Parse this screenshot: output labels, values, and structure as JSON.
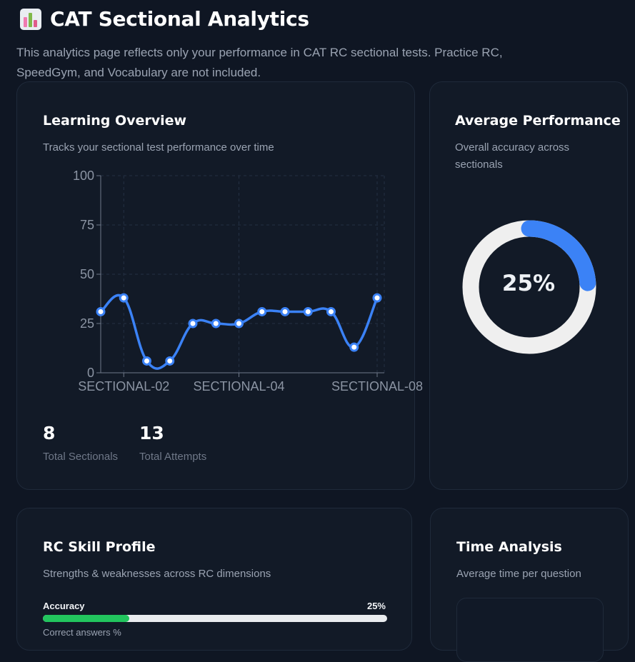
{
  "header": {
    "title": "CAT Sectional Analytics",
    "subtitle": "This analytics page reflects only your performance in CAT RC sectional tests. Practice RC, SpeedGym, and Vocabulary are not included.",
    "icon": "bar-chart-icon"
  },
  "learning_overview": {
    "title": "Learning Overview",
    "subtitle": "Tracks your sectional test performance over time",
    "stats": [
      {
        "value": "8",
        "label": "Total Sectionals"
      },
      {
        "value": "13",
        "label": "Total Attempts"
      }
    ]
  },
  "average_performance": {
    "title": "Average Performance",
    "subtitle": "Overall accuracy across sectionals",
    "value_text": "25%",
    "fraction": 0.25
  },
  "skill_profile": {
    "title": "RC Skill Profile",
    "subtitle": "Strengths & weaknesses across RC dimensions",
    "bars": [
      {
        "label": "Accuracy",
        "value_text": "25%",
        "fraction": 0.25,
        "caption": "Correct answers %"
      }
    ]
  },
  "time_analysis": {
    "title": "Time Analysis",
    "subtitle": "Average time per question"
  },
  "colors": {
    "background": "#0f1623",
    "card": "#121a27",
    "line": "#3b82f6",
    "donut_track": "#efefef",
    "donut_fill": "#3b82f6",
    "bar_fill": "#22c55e"
  },
  "chart_data": {
    "type": "line",
    "x_tick_labels": [
      "SECTIONAL-02",
      "SECTIONAL-04",
      "SECTIONAL-08"
    ],
    "y_ticks": [
      0,
      25,
      50,
      75,
      100
    ],
    "ylim": [
      0,
      100
    ],
    "values": [
      31,
      38,
      6,
      6,
      25,
      25,
      25,
      31,
      31,
      31,
      31,
      13,
      38
    ],
    "x_tick_indices": [
      1,
      6,
      12
    ],
    "grid": true,
    "smooth": true
  }
}
